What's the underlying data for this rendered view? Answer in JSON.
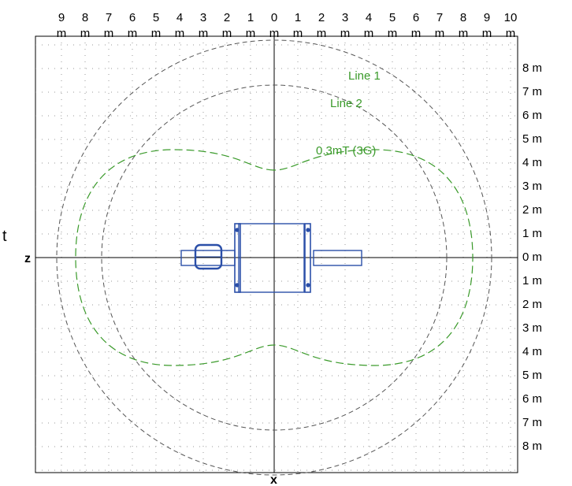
{
  "diagram": {
    "top_ticks": [
      {
        "num": "9",
        "unit": "m"
      },
      {
        "num": "8",
        "unit": "m"
      },
      {
        "num": "7",
        "unit": "m"
      },
      {
        "num": "6",
        "unit": "m"
      },
      {
        "num": "5",
        "unit": "m"
      },
      {
        "num": "4",
        "unit": "m"
      },
      {
        "num": "3",
        "unit": "m"
      },
      {
        "num": "2",
        "unit": "m"
      },
      {
        "num": "1",
        "unit": "m"
      },
      {
        "num": "0",
        "unit": "m"
      },
      {
        "num": "1",
        "unit": "m"
      },
      {
        "num": "2",
        "unit": "m"
      },
      {
        "num": "3",
        "unit": "m"
      },
      {
        "num": "4",
        "unit": "m"
      },
      {
        "num": "5",
        "unit": "m"
      },
      {
        "num": "6",
        "unit": "m"
      },
      {
        "num": "7",
        "unit": "m"
      },
      {
        "num": "8",
        "unit": "m"
      },
      {
        "num": "9",
        "unit": "m"
      },
      {
        "num": "10",
        "unit": "m"
      }
    ],
    "right_ticks": [
      "8 m",
      "7 m",
      "6 m",
      "5 m",
      "4 m",
      "3 m",
      "2 m",
      "1 m",
      "0 m",
      "1 m",
      "2 m",
      "3 m",
      "4 m",
      "5 m",
      "6 m",
      "7 m",
      "8 m"
    ],
    "axis_letters": {
      "left": "z",
      "bottom": "x",
      "outside_left": "t"
    },
    "contours": [
      {
        "label": "Line 1",
        "radius_m": 9.2,
        "color": "#555555",
        "style": "dashed"
      },
      {
        "label": "Line 2",
        "radius_m": 7.3,
        "color": "#555555",
        "style": "dashed"
      },
      {
        "label": "0.3mT (3G)",
        "color": "#3a9a2a",
        "style": "dashed",
        "x_extent_m": 8.4,
        "z_edge_m": 4.6,
        "z_center_m": 3.7
      }
    ],
    "colors": {
      "grid": "#9a9a9a",
      "axis": "#000000",
      "magnet": "#2b4fa8",
      "label": "#3a9a2a"
    }
  }
}
